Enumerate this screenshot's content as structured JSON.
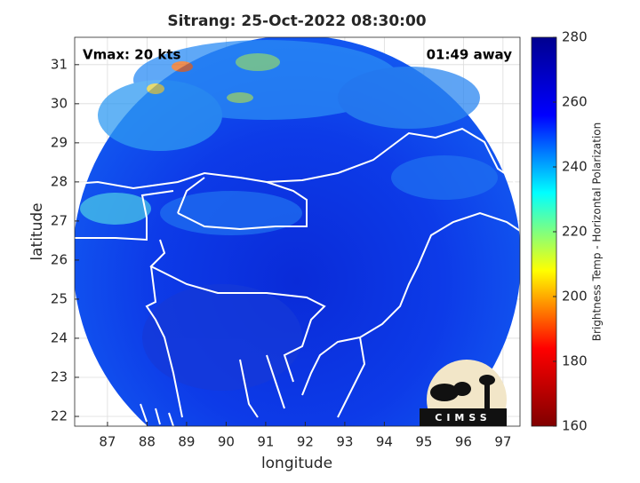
{
  "chart_data": {
    "type": "map",
    "title": "Sitrang: 25-Oct-2022 08:30:00",
    "annotations": [
      "Vmax: 20 kts",
      "01:49 away"
    ],
    "xlabel": "longitude",
    "ylabel": "latitude",
    "xlim": [
      86.17,
      97.43
    ],
    "ylim": [
      21.75,
      31.7
    ],
    "xticks": [
      87,
      88,
      89,
      90,
      91,
      92,
      93,
      94,
      95,
      96,
      97
    ],
    "yticks": [
      22,
      23,
      24,
      25,
      26,
      27,
      28,
      29,
      30,
      31
    ],
    "grid": true,
    "colorbar": {
      "label": "Brightness Temp - Horizontal Polarization",
      "lim": [
        160,
        280
      ],
      "ticks": [
        160,
        180,
        200,
        220,
        240,
        260,
        280
      ],
      "colors": [
        "#800000",
        "#ff0000",
        "#ffff00",
        "#00ffff",
        "#0000ff",
        "#00008f"
      ]
    },
    "logo_text": "CIMSS"
  }
}
